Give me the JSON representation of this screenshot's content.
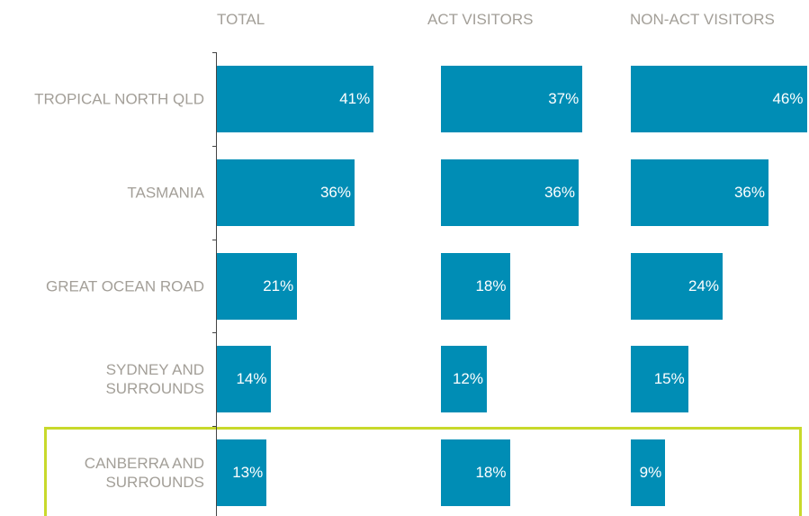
{
  "chart_data": {
    "type": "bar",
    "orientation": "horizontal",
    "color": "#008db5",
    "categories": [
      "TROPICAL NORTH QLD",
      "TASMANIA",
      "GREAT OCEAN ROAD",
      "SYDNEY AND\nSURROUNDS",
      "CANBERRA AND\nSURROUNDS"
    ],
    "series": [
      {
        "name": "TOTAL",
        "color": "#008db5",
        "values": [
          41,
          36,
          21,
          14,
          13
        ],
        "value_labels": [
          "41%",
          "36%",
          "21%",
          "14%",
          "13%"
        ]
      },
      {
        "name": "ACT VISITORS",
        "color": "#008db5",
        "values": [
          37,
          36,
          18,
          12,
          18
        ],
        "value_labels": [
          "37%",
          "36%",
          "18%",
          "12%",
          "18%"
        ]
      },
      {
        "name": "NON-ACT VISITORS",
        "color": "#008db5",
        "values": [
          46,
          36,
          24,
          15,
          9
        ],
        "value_labels": [
          "46%",
          "36%",
          "24%",
          "15%",
          "9%"
        ]
      }
    ]
  }
}
